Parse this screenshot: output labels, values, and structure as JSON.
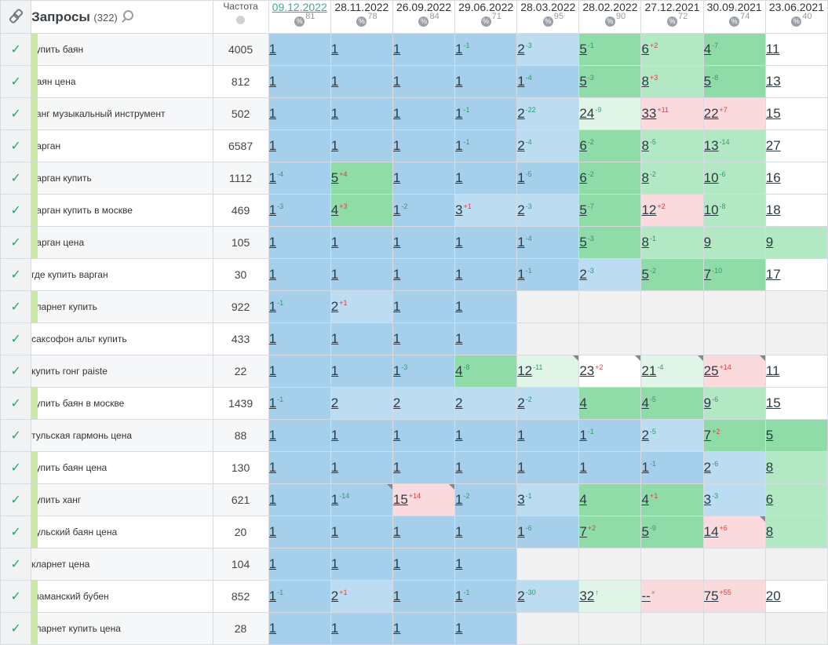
{
  "header": {
    "link_icon": "link-icon",
    "queries_title": "Запросы",
    "queries_count": "(322)",
    "search_icon": "search-icon",
    "frequency_label": "Частота",
    "globe_icon": "globe-icon",
    "percent_symbol": "%",
    "dates": [
      {
        "date": "09.12.2022",
        "pct": "81",
        "active": true
      },
      {
        "date": "28.11.2022",
        "pct": "78"
      },
      {
        "date": "26.09.2022",
        "pct": "84"
      },
      {
        "date": "29.06.2022",
        "pct": "71"
      },
      {
        "date": "28.03.2022",
        "pct": "95"
      },
      {
        "date": "28.02.2022",
        "pct": "90"
      },
      {
        "date": "27.12.2021",
        "pct": "72"
      },
      {
        "date": "30.09.2021",
        "pct": "74"
      },
      {
        "date": "23.06.2021",
        "pct": "40"
      }
    ]
  },
  "colors": {
    "check_green": "#2aa37a",
    "active_date": "#3fae7c",
    "blue_strong": "#a6cfec",
    "blue_light": "#bcdcf2",
    "green_strong": "#8fdca9",
    "green_medium": "#b3e8c4",
    "green_light": "#e0f5e7",
    "red_light": "#fadadd",
    "empty": "#f1f1f1"
  },
  "rows": [
    {
      "query": "купить баян",
      "freq": "4005",
      "bar": true,
      "cells": [
        {
          "v": "1",
          "bg": "b1"
        },
        {
          "v": "1",
          "bg": "b1"
        },
        {
          "v": "1",
          "bg": "b1"
        },
        {
          "v": "1",
          "d": "-1",
          "dc": "up",
          "bg": "b1"
        },
        {
          "v": "2",
          "d": "-3",
          "dc": "up",
          "bg": "b2"
        },
        {
          "v": "5",
          "d": "-1",
          "dc": "up",
          "bg": "g1"
        },
        {
          "v": "6",
          "d": "+2",
          "dc": "dn",
          "bg": "g2"
        },
        {
          "v": "4",
          "d": "-7",
          "dc": "up",
          "bg": "g1"
        },
        {
          "v": "11",
          "bg": "w"
        }
      ]
    },
    {
      "query": "баян цена",
      "freq": "812",
      "bar": true,
      "cells": [
        {
          "v": "1",
          "bg": "b1"
        },
        {
          "v": "1",
          "bg": "b1"
        },
        {
          "v": "1",
          "bg": "b1"
        },
        {
          "v": "1",
          "bg": "b1"
        },
        {
          "v": "1",
          "d": "-4",
          "dc": "up",
          "bg": "b1"
        },
        {
          "v": "5",
          "d": "-3",
          "dc": "up",
          "bg": "g1"
        },
        {
          "v": "8",
          "d": "+3",
          "dc": "dn",
          "bg": "g2"
        },
        {
          "v": "5",
          "d": "-8",
          "dc": "up",
          "bg": "g1"
        },
        {
          "v": "13",
          "bg": "w"
        }
      ]
    },
    {
      "query": "ханг музыкальный инструмент",
      "freq": "502",
      "bar": true,
      "cells": [
        {
          "v": "1",
          "bg": "b1"
        },
        {
          "v": "1",
          "bg": "b1"
        },
        {
          "v": "1",
          "bg": "b1"
        },
        {
          "v": "1",
          "d": "-1",
          "dc": "up",
          "bg": "b1"
        },
        {
          "v": "2",
          "d": "-22",
          "dc": "up",
          "bg": "b2"
        },
        {
          "v": "24",
          "d": "-9",
          "dc": "up",
          "bg": "g3"
        },
        {
          "v": "33",
          "d": "+11",
          "dc": "dn",
          "bg": "r"
        },
        {
          "v": "22",
          "d": "+7",
          "dc": "dn",
          "bg": "r"
        },
        {
          "v": "15",
          "bg": "w"
        }
      ]
    },
    {
      "query": "варган",
      "freq": "6587",
      "bar": true,
      "cells": [
        {
          "v": "1",
          "bg": "b1"
        },
        {
          "v": "1",
          "bg": "b1"
        },
        {
          "v": "1",
          "bg": "b1"
        },
        {
          "v": "1",
          "d": "-1",
          "dc": "up",
          "bg": "b1"
        },
        {
          "v": "2",
          "d": "-4",
          "dc": "up",
          "bg": "b2"
        },
        {
          "v": "6",
          "d": "-2",
          "dc": "up",
          "bg": "g1"
        },
        {
          "v": "8",
          "d": "-5",
          "dc": "up",
          "bg": "g2"
        },
        {
          "v": "13",
          "d": "-14",
          "dc": "up",
          "bg": "g2"
        },
        {
          "v": "27",
          "bg": "w"
        }
      ]
    },
    {
      "query": "варган купить",
      "freq": "1112",
      "bar": true,
      "cells": [
        {
          "v": "1",
          "d": "-4",
          "dc": "up",
          "bg": "b1"
        },
        {
          "v": "5",
          "d": "+4",
          "dc": "dn",
          "bg": "g1"
        },
        {
          "v": "1",
          "bg": "b1"
        },
        {
          "v": "1",
          "bg": "b1"
        },
        {
          "v": "1",
          "d": "-5",
          "dc": "up",
          "bg": "b1"
        },
        {
          "v": "6",
          "d": "-2",
          "dc": "up",
          "bg": "g1"
        },
        {
          "v": "8",
          "d": "-2",
          "dc": "up",
          "bg": "g2"
        },
        {
          "v": "10",
          "d": "-6",
          "dc": "up",
          "bg": "g2"
        },
        {
          "v": "16",
          "bg": "w"
        }
      ]
    },
    {
      "query": "варган купить в москве",
      "freq": "469",
      "bar": true,
      "cells": [
        {
          "v": "1",
          "d": "-3",
          "dc": "up",
          "bg": "b1"
        },
        {
          "v": "4",
          "d": "+3",
          "dc": "dn",
          "bg": "g1"
        },
        {
          "v": "1",
          "d": "-2",
          "dc": "up",
          "bg": "b1"
        },
        {
          "v": "3",
          "d": "+1",
          "dc": "dn",
          "bg": "b2"
        },
        {
          "v": "2",
          "d": "-3",
          "dc": "up",
          "bg": "b2"
        },
        {
          "v": "5",
          "d": "-7",
          "dc": "up",
          "bg": "g1"
        },
        {
          "v": "12",
          "d": "+2",
          "dc": "dn",
          "bg": "r"
        },
        {
          "v": "10",
          "d": "-8",
          "dc": "up",
          "bg": "g2"
        },
        {
          "v": "18",
          "bg": "w"
        }
      ]
    },
    {
      "query": "варган цена",
      "freq": "105",
      "bar": true,
      "cells": [
        {
          "v": "1",
          "bg": "b1"
        },
        {
          "v": "1",
          "bg": "b1"
        },
        {
          "v": "1",
          "bg": "b1"
        },
        {
          "v": "1",
          "bg": "b1"
        },
        {
          "v": "1",
          "d": "-4",
          "dc": "up",
          "bg": "b1"
        },
        {
          "v": "5",
          "d": "-3",
          "dc": "up",
          "bg": "g1"
        },
        {
          "v": "8",
          "d": "-1",
          "dc": "up",
          "bg": "g2"
        },
        {
          "v": "9",
          "bg": "g2"
        },
        {
          "v": "9",
          "bg": "g2"
        }
      ]
    },
    {
      "query": "где купить варган",
      "freq": "30",
      "bar": false,
      "cells": [
        {
          "v": "1",
          "bg": "b1"
        },
        {
          "v": "1",
          "bg": "b1"
        },
        {
          "v": "1",
          "bg": "b1"
        },
        {
          "v": "1",
          "bg": "b1"
        },
        {
          "v": "1",
          "d": "-1",
          "dc": "up",
          "bg": "b1"
        },
        {
          "v": "2",
          "d": "-3",
          "dc": "up",
          "bg": "b2"
        },
        {
          "v": "5",
          "d": "-2",
          "dc": "up",
          "bg": "g1"
        },
        {
          "v": "7",
          "d": "-10",
          "dc": "up",
          "bg": "g1"
        },
        {
          "v": "17",
          "bg": "w"
        }
      ]
    },
    {
      "query": "кларнет купить",
      "freq": "922",
      "bar": true,
      "cells": [
        {
          "v": "1",
          "d": "-1",
          "dc": "up",
          "bg": "b1"
        },
        {
          "v": "2",
          "d": "+1",
          "dc": "dn",
          "bg": "b2"
        },
        {
          "v": "1",
          "bg": "b1"
        },
        {
          "v": "1",
          "bg": "b1"
        },
        {
          "v": "",
          "bg": "e"
        },
        {
          "v": "",
          "bg": "e"
        },
        {
          "v": "",
          "bg": "e"
        },
        {
          "v": "",
          "bg": "e"
        },
        {
          "v": "",
          "bg": "e"
        }
      ]
    },
    {
      "query": "саксофон альт купить",
      "freq": "433",
      "bar": false,
      "cells": [
        {
          "v": "1",
          "bg": "b1"
        },
        {
          "v": "1",
          "bg": "b1"
        },
        {
          "v": "1",
          "bg": "b1"
        },
        {
          "v": "1",
          "bg": "b1"
        },
        {
          "v": "",
          "bg": "e"
        },
        {
          "v": "",
          "bg": "e"
        },
        {
          "v": "",
          "bg": "e"
        },
        {
          "v": "",
          "bg": "e"
        },
        {
          "v": "",
          "bg": "e"
        }
      ]
    },
    {
      "query": "купить гонг paiste",
      "freq": "22",
      "bar": false,
      "cells": [
        {
          "v": "1",
          "bg": "b1"
        },
        {
          "v": "1",
          "bg": "b1"
        },
        {
          "v": "1",
          "d": "-3",
          "dc": "up",
          "bg": "b1"
        },
        {
          "v": "4",
          "d": "-8",
          "dc": "up",
          "bg": "g1"
        },
        {
          "v": "12",
          "d": "-11",
          "dc": "up",
          "bg": "g3",
          "corner": true
        },
        {
          "v": "23",
          "d": "+2",
          "dc": "dn",
          "bg": "w",
          "corner": true
        },
        {
          "v": "21",
          "d": "-4",
          "dc": "up",
          "bg": "g3",
          "corner": true
        },
        {
          "v": "25",
          "d": "+14",
          "dc": "dn",
          "bg": "r",
          "corner": true
        },
        {
          "v": "11",
          "bg": "w"
        }
      ]
    },
    {
      "query": "купить баян в москве",
      "freq": "1439",
      "bar": true,
      "cells": [
        {
          "v": "1",
          "d": "-1",
          "dc": "up",
          "bg": "b1"
        },
        {
          "v": "2",
          "bg": "b2"
        },
        {
          "v": "2",
          "bg": "b2"
        },
        {
          "v": "2",
          "bg": "b2"
        },
        {
          "v": "2",
          "d": "-2",
          "dc": "up",
          "bg": "b2"
        },
        {
          "v": "4",
          "bg": "g1"
        },
        {
          "v": "4",
          "d": "-5",
          "dc": "up",
          "bg": "g1"
        },
        {
          "v": "9",
          "d": "-6",
          "dc": "up",
          "bg": "g2"
        },
        {
          "v": "15",
          "bg": "w"
        }
      ]
    },
    {
      "query": "тульская гармонь цена",
      "freq": "88",
      "bar": false,
      "cells": [
        {
          "v": "1",
          "bg": "b1"
        },
        {
          "v": "1",
          "bg": "b1"
        },
        {
          "v": "1",
          "bg": "b1"
        },
        {
          "v": "1",
          "bg": "b1"
        },
        {
          "v": "1",
          "bg": "b1"
        },
        {
          "v": "1",
          "d": "-1",
          "dc": "up",
          "bg": "b1"
        },
        {
          "v": "2",
          "d": "-5",
          "dc": "up",
          "bg": "b2"
        },
        {
          "v": "7",
          "d": "+2",
          "dc": "dn",
          "bg": "g1"
        },
        {
          "v": "5",
          "bg": "g1"
        }
      ]
    },
    {
      "query": "купить баян цена",
      "freq": "130",
      "bar": true,
      "cells": [
        {
          "v": "1",
          "bg": "b1"
        },
        {
          "v": "1",
          "bg": "b1"
        },
        {
          "v": "1",
          "bg": "b1"
        },
        {
          "v": "1",
          "bg": "b1"
        },
        {
          "v": "1",
          "bg": "b1"
        },
        {
          "v": "1",
          "bg": "b1"
        },
        {
          "v": "1",
          "d": "-1",
          "dc": "up",
          "bg": "b1"
        },
        {
          "v": "2",
          "d": "-6",
          "dc": "up",
          "bg": "b2"
        },
        {
          "v": "8",
          "bg": "g2"
        }
      ]
    },
    {
      "query": "купить ханг",
      "freq": "621",
      "bar": true,
      "cells": [
        {
          "v": "1",
          "bg": "b1"
        },
        {
          "v": "1",
          "d": "-14",
          "dc": "up",
          "bg": "b1",
          "corner": true
        },
        {
          "v": "15",
          "d": "+14",
          "dc": "dn",
          "bg": "r",
          "corner": true
        },
        {
          "v": "1",
          "d": "-2",
          "dc": "up",
          "bg": "b1"
        },
        {
          "v": "3",
          "d": "-1",
          "dc": "up",
          "bg": "b2"
        },
        {
          "v": "4",
          "bg": "g1"
        },
        {
          "v": "4",
          "d": "+1",
          "dc": "dn",
          "bg": "g1"
        },
        {
          "v": "3",
          "d": "-3",
          "dc": "up",
          "bg": "b2"
        },
        {
          "v": "6",
          "bg": "g2"
        }
      ]
    },
    {
      "query": "тульский баян цена",
      "freq": "20",
      "bar": true,
      "cells": [
        {
          "v": "1",
          "bg": "b1"
        },
        {
          "v": "1",
          "bg": "b1"
        },
        {
          "v": "1",
          "bg": "b1"
        },
        {
          "v": "1",
          "bg": "b1"
        },
        {
          "v": "1",
          "d": "-6",
          "dc": "up",
          "bg": "b1"
        },
        {
          "v": "7",
          "d": "+2",
          "dc": "dn",
          "bg": "g1"
        },
        {
          "v": "5",
          "d": "-9",
          "dc": "up",
          "bg": "g1"
        },
        {
          "v": "14",
          "d": "+6",
          "dc": "dn",
          "bg": "r",
          "corner": true
        },
        {
          "v": "8",
          "bg": "g2"
        }
      ]
    },
    {
      "query": "кларнет цена",
      "freq": "104",
      "bar": false,
      "cells": [
        {
          "v": "1",
          "bg": "b1"
        },
        {
          "v": "1",
          "bg": "b1"
        },
        {
          "v": "1",
          "bg": "b1"
        },
        {
          "v": "1",
          "bg": "b1"
        },
        {
          "v": "",
          "bg": "e"
        },
        {
          "v": "",
          "bg": "e"
        },
        {
          "v": "",
          "bg": "e"
        },
        {
          "v": "",
          "bg": "e"
        },
        {
          "v": "",
          "bg": "e"
        }
      ]
    },
    {
      "query": "шаманский бубен",
      "freq": "852",
      "bar": true,
      "cells": [
        {
          "v": "1",
          "d": "-1",
          "dc": "up",
          "bg": "b1"
        },
        {
          "v": "2",
          "d": "+1",
          "dc": "dn",
          "bg": "b2"
        },
        {
          "v": "1",
          "bg": "b1"
        },
        {
          "v": "1",
          "d": "-1",
          "dc": "up",
          "bg": "b1"
        },
        {
          "v": "2",
          "d": "-30",
          "dc": "up",
          "bg": "b2"
        },
        {
          "v": "32",
          "d": "↑",
          "dc": "up",
          "bg": "g3"
        },
        {
          "v": "--",
          "d": "×",
          "dc": "nx",
          "bg": "r"
        },
        {
          "v": "75",
          "d": "+55",
          "dc": "dn",
          "bg": "r"
        },
        {
          "v": "20",
          "bg": "w"
        }
      ]
    },
    {
      "query": "кларнет купить цена",
      "freq": "28",
      "bar": true,
      "cells": [
        {
          "v": "1",
          "bg": "b1"
        },
        {
          "v": "1",
          "bg": "b1"
        },
        {
          "v": "1",
          "bg": "b1"
        },
        {
          "v": "1",
          "bg": "b1"
        },
        {
          "v": "",
          "bg": "e"
        },
        {
          "v": "",
          "bg": "e"
        },
        {
          "v": "",
          "bg": "e"
        },
        {
          "v": "",
          "bg": "e"
        },
        {
          "v": "",
          "bg": "e"
        }
      ]
    }
  ]
}
